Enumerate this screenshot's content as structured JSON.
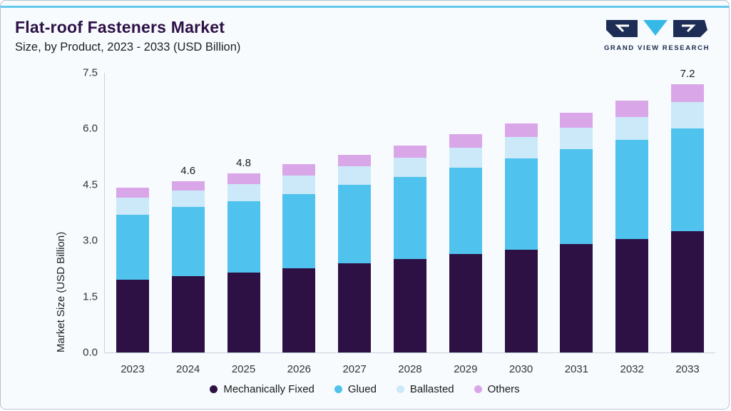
{
  "brand": {
    "name": "GRAND VIEW RESEARCH"
  },
  "chart_data": {
    "type": "bar",
    "stacked": true,
    "title": "Flat-roof Fasteners Market",
    "subtitle": "Size, by Product, 2023 - 2033 (USD Billion)",
    "ylabel": "Market Size (USD Billion)",
    "ylim": [
      0,
      7.5
    ],
    "ytick_labels": [
      "0.0",
      "1.5",
      "3.0",
      "4.5",
      "6.0",
      "7.5"
    ],
    "grid": false,
    "legend_position": "bottom",
    "categories": [
      "2023",
      "2024",
      "2025",
      "2026",
      "2027",
      "2028",
      "2029",
      "2030",
      "2031",
      "2032",
      "2033"
    ],
    "series": [
      {
        "name": "Mechanically Fixed",
        "color": "#2d1145",
        "values": [
          1.95,
          2.05,
          2.15,
          2.25,
          2.4,
          2.5,
          2.65,
          2.75,
          2.9,
          3.05,
          3.25
        ]
      },
      {
        "name": "Glued",
        "color": "#50c2ee",
        "values": [
          1.75,
          1.85,
          1.9,
          2.0,
          2.1,
          2.2,
          2.3,
          2.45,
          2.55,
          2.65,
          2.75
        ]
      },
      {
        "name": "Ballasted",
        "color": "#cbe9f9",
        "values": [
          0.45,
          0.45,
          0.47,
          0.5,
          0.5,
          0.52,
          0.55,
          0.57,
          0.58,
          0.62,
          0.72
        ]
      },
      {
        "name": "Others",
        "color": "#d9a7e8",
        "values": [
          0.27,
          0.25,
          0.28,
          0.3,
          0.3,
          0.33,
          0.35,
          0.38,
          0.4,
          0.43,
          0.48
        ]
      }
    ],
    "total_labels": {
      "2024": "4.6",
      "2025": "4.8",
      "2033": "7.2"
    }
  }
}
